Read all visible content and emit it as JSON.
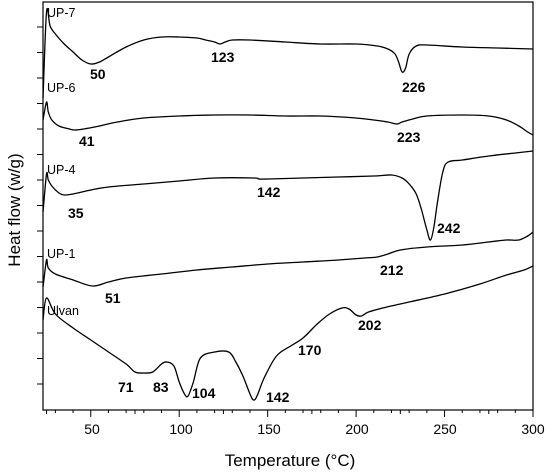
{
  "chart_data": {
    "type": "line",
    "title": "",
    "xlabel": "Temperature (°C)",
    "ylabel": "Heat flow (w/g)",
    "xlim": [
      23,
      300
    ],
    "x_ticks": [
      "50",
      "100",
      "150",
      "200",
      "250",
      "300"
    ],
    "x_tick_values": [
      50,
      100,
      150,
      200,
      250,
      300
    ],
    "grid": false,
    "series": [
      {
        "name": "UP-7",
        "color": "#000000",
        "points": [
          [
            23,
            96
          ],
          [
            25,
            10
          ],
          [
            27,
            24
          ],
          [
            30,
            32
          ],
          [
            35,
            42
          ],
          [
            40,
            50
          ],
          [
            45,
            58
          ],
          [
            50,
            62
          ],
          [
            55,
            60
          ],
          [
            60,
            55
          ],
          [
            70,
            45
          ],
          [
            80,
            38
          ],
          [
            90,
            35
          ],
          [
            100,
            35
          ],
          [
            110,
            36
          ],
          [
            115,
            38
          ],
          [
            120,
            40
          ],
          [
            123,
            42
          ],
          [
            126,
            40
          ],
          [
            130,
            38
          ],
          [
            140,
            38
          ],
          [
            160,
            40
          ],
          [
            180,
            42
          ],
          [
            200,
            42
          ],
          [
            212,
            44
          ],
          [
            218,
            47
          ],
          [
            222,
            52
          ],
          [
            224,
            60
          ],
          [
            226,
            70
          ],
          [
            228,
            66
          ],
          [
            230,
            52
          ],
          [
            234,
            44
          ],
          [
            240,
            43
          ],
          [
            260,
            45
          ],
          [
            280,
            46
          ],
          [
            300,
            47
          ]
        ],
        "peak_labels": [
          "50",
          "123",
          "226"
        ]
      },
      {
        "name": "UP-6",
        "color": "#000000",
        "points": [
          [
            23,
            118
          ],
          [
            25,
            100
          ],
          [
            26,
            110
          ],
          [
            28,
            118
          ],
          [
            32,
            124
          ],
          [
            38,
            127
          ],
          [
            41,
            128
          ],
          [
            46,
            127
          ],
          [
            55,
            124
          ],
          [
            65,
            120
          ],
          [
            80,
            116
          ],
          [
            100,
            114
          ],
          [
            120,
            113
          ],
          [
            140,
            113
          ],
          [
            160,
            114
          ],
          [
            180,
            114
          ],
          [
            200,
            116
          ],
          [
            210,
            118
          ],
          [
            218,
            120
          ],
          [
            223,
            122
          ],
          [
            226,
            120
          ],
          [
            232,
            117
          ],
          [
            240,
            114
          ],
          [
            260,
            113
          ],
          [
            275,
            114
          ],
          [
            285,
            118
          ],
          [
            292,
            124
          ],
          [
            297,
            130
          ],
          [
            300,
            133
          ]
        ],
        "peak_labels": [
          "41",
          "223"
        ]
      },
      {
        "name": "UP-4",
        "color": "#000000",
        "points": [
          [
            23,
            210
          ],
          [
            25,
            172
          ],
          [
            26,
            178
          ],
          [
            28,
            184
          ],
          [
            32,
            191
          ],
          [
            35,
            193
          ],
          [
            40,
            192
          ],
          [
            50,
            188
          ],
          [
            60,
            185
          ],
          [
            80,
            182
          ],
          [
            100,
            179
          ],
          [
            120,
            176
          ],
          [
            142,
            176
          ],
          [
            145,
            177
          ],
          [
            150,
            177
          ],
          [
            170,
            176
          ],
          [
            190,
            175
          ],
          [
            210,
            174
          ],
          [
            220,
            173
          ],
          [
            226,
            176
          ],
          [
            230,
            182
          ],
          [
            234,
            192
          ],
          [
            237,
            208
          ],
          [
            240,
            228
          ],
          [
            242,
            238
          ],
          [
            244,
            225
          ],
          [
            246,
            200
          ],
          [
            249,
            170
          ],
          [
            252,
            160
          ],
          [
            260,
            158
          ],
          [
            275,
            154
          ],
          [
            290,
            151
          ],
          [
            300,
            149
          ]
        ],
        "peak_labels": [
          "35",
          "142",
          "242"
        ]
      },
      {
        "name": "UP-1",
        "color": "#000000",
        "points": [
          [
            23,
            285
          ],
          [
            25,
            258
          ],
          [
            26,
            266
          ],
          [
            30,
            272
          ],
          [
            40,
            278
          ],
          [
            51,
            284
          ],
          [
            60,
            280
          ],
          [
            70,
            276
          ],
          [
            90,
            272
          ],
          [
            110,
            268
          ],
          [
            130,
            265
          ],
          [
            150,
            262
          ],
          [
            170,
            260
          ],
          [
            190,
            258
          ],
          [
            205,
            256
          ],
          [
            212,
            255
          ],
          [
            218,
            252
          ],
          [
            225,
            248
          ],
          [
            240,
            245
          ],
          [
            260,
            243
          ],
          [
            275,
            240
          ],
          [
            285,
            238
          ],
          [
            292,
            238
          ],
          [
            297,
            234
          ],
          [
            300,
            230
          ]
        ],
        "peak_labels": [
          "51",
          "212"
        ]
      },
      {
        "name": "Ulvan",
        "color": "#000000",
        "points": [
          [
            23,
            318
          ],
          [
            25,
            296
          ],
          [
            30,
            312
          ],
          [
            40,
            326
          ],
          [
            50,
            338
          ],
          [
            60,
            350
          ],
          [
            70,
            362
          ],
          [
            75,
            370
          ],
          [
            80,
            371
          ],
          [
            85,
            370
          ],
          [
            90,
            362
          ],
          [
            93,
            360
          ],
          [
            97,
            364
          ],
          [
            100,
            380
          ],
          [
            103,
            392
          ],
          [
            105,
            394
          ],
          [
            108,
            380
          ],
          [
            112,
            356
          ],
          [
            120,
            350
          ],
          [
            128,
            350
          ],
          [
            132,
            360
          ],
          [
            136,
            374
          ],
          [
            140,
            392
          ],
          [
            142,
            398
          ],
          [
            144,
            394
          ],
          [
            148,
            376
          ],
          [
            155,
            354
          ],
          [
            163,
            344
          ],
          [
            170,
            336
          ],
          [
            178,
            322
          ],
          [
            185,
            312
          ],
          [
            192,
            306
          ],
          [
            196,
            307
          ],
          [
            200,
            313
          ],
          [
            203,
            314
          ],
          [
            207,
            310
          ],
          [
            215,
            306
          ],
          [
            230,
            300
          ],
          [
            250,
            292
          ],
          [
            270,
            282
          ],
          [
            285,
            273
          ],
          [
            295,
            268
          ],
          [
            300,
            264
          ]
        ],
        "peak_labels": [
          "71",
          "83",
          "104",
          "142",
          "170",
          "202"
        ]
      }
    ]
  }
}
